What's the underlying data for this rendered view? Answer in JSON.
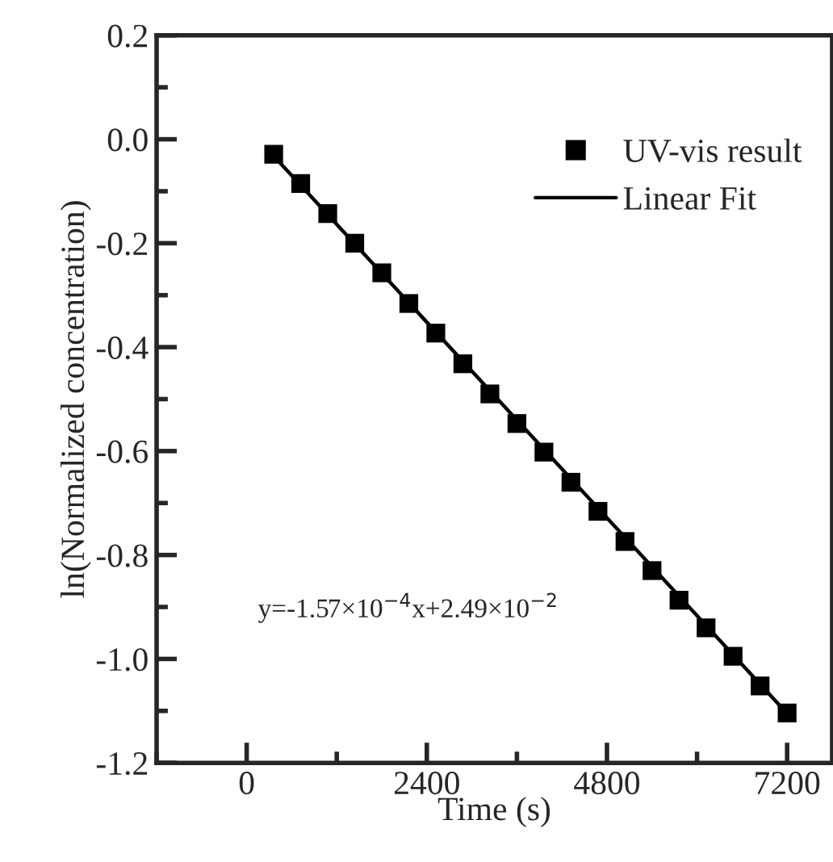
{
  "chart_data": {
    "type": "scatter",
    "xlabel": "Time (s)",
    "ylabel": "ln(Normalized concentration)",
    "series": [
      {
        "name": "UV-vis result",
        "color": "#000000",
        "marker": "square",
        "x": [
          360,
          720,
          1080,
          1440,
          1800,
          2160,
          2520,
          2880,
          3240,
          3600,
          3960,
          4320,
          4680,
          5040,
          5400,
          5760,
          6120,
          6480,
          6840,
          7200
        ],
        "values": [
          -0.029,
          -0.085,
          -0.143,
          -0.2,
          -0.257,
          -0.316,
          -0.373,
          -0.432,
          -0.49,
          -0.547,
          -0.602,
          -0.66,
          -0.716,
          -0.774,
          -0.83,
          -0.887,
          -0.94,
          -0.995,
          -1.052,
          -1.104
        ]
      },
      {
        "name": "Linear Fit",
        "type": "line",
        "color": "#000000",
        "line_style": "solid",
        "x": [
          360,
          7200
        ],
        "values": [
          -0.032,
          -1.105
        ]
      }
    ],
    "xlim": [
      -1200,
      7800
    ],
    "xticks": [
      0,
      2400,
      4800,
      7200
    ],
    "ylim": [
      -1.2,
      0.2
    ],
    "yticks": [
      {
        "value": -1.2,
        "label": "-1.2"
      },
      {
        "value": -1.0,
        "label": "-1.0"
      },
      {
        "value": -0.8,
        "label": "-0.8"
      },
      {
        "value": -0.6,
        "label": "-0.6"
      },
      {
        "value": -0.4,
        "label": "-0.4"
      },
      {
        "value": -0.2,
        "label": "-0.2"
      },
      {
        "value": 0.0,
        "label": "0.0"
      },
      {
        "value": 0.2,
        "label": "0.2"
      }
    ],
    "annotations": [
      "y=-1.57×10$^{−4}$x+2.49×10$^{−2}$"
    ],
    "legend": "top right",
    "grid": false
  }
}
